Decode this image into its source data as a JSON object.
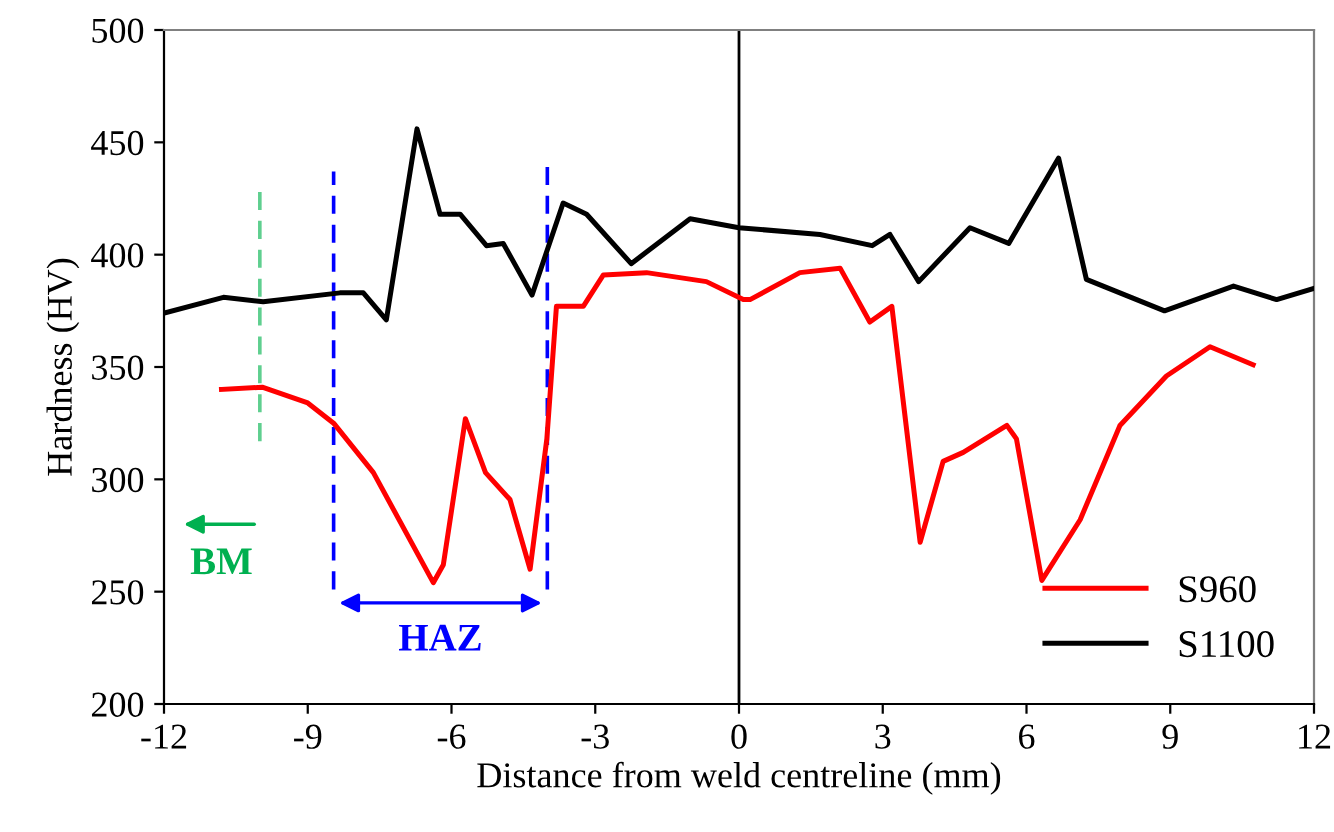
{
  "chart_data": {
    "type": "line",
    "xlabel": "Distance from weld centreline (mm)",
    "ylabel": "Hardness (HV)",
    "xlim": [
      -12,
      12
    ],
    "ylim": [
      200,
      500
    ],
    "xticks": [
      -12,
      -9,
      -6,
      -3,
      0,
      3,
      6,
      9,
      12
    ],
    "yticks": [
      200,
      250,
      300,
      350,
      400,
      450,
      500
    ],
    "grid": false,
    "legend": "bottom right",
    "marker": "none",
    "line_style": "solid",
    "series": [
      {
        "name": "S960",
        "color": "#ff0000",
        "x": [
          -10.8,
          -9.95,
          -9.0,
          -8.46,
          -7.63,
          -6.38,
          -6.17,
          -5.71,
          -5.29,
          -4.78,
          -4.36,
          -4.01,
          -3.81,
          -3.25,
          -2.83,
          -1.93,
          -0.68,
          0.09,
          0.23,
          1.27,
          2.11,
          2.73,
          3.19,
          3.78,
          4.26,
          4.68,
          5.59,
          5.79,
          6.32,
          7.12,
          7.95,
          8.92,
          9.83,
          10.73
        ],
        "values": [
          340,
          341,
          334,
          325,
          303,
          254,
          262,
          327,
          303,
          291,
          260,
          318,
          377,
          377,
          391,
          392,
          388,
          380,
          380,
          392,
          394,
          370,
          377,
          272,
          308,
          312,
          324,
          318,
          255,
          282,
          324,
          346,
          359,
          351
        ]
      },
      {
        "name": "S1100",
        "color": "#000000",
        "x": [
          -12,
          -10.76,
          -9.93,
          -8.33,
          -7.84,
          -7.36,
          -6.72,
          -6.24,
          -5.82,
          -5.27,
          -4.92,
          -4.32,
          -3.67,
          -3.18,
          -2.25,
          -1.02,
          0,
          1.69,
          2.78,
          3.15,
          3.75,
          4.82,
          5.63,
          6.67,
          7.25,
          8.88,
          10.32,
          11.22,
          12
        ],
        "values": [
          374,
          381,
          379,
          383,
          383,
          371,
          456,
          418,
          418,
          404,
          405,
          382,
          423,
          418,
          396,
          416,
          412,
          409,
          404,
          409,
          388,
          412,
          405,
          443,
          389,
          375,
          386,
          380,
          385
        ]
      }
    ],
    "ref_lines": [
      {
        "axis": "x",
        "value": 0,
        "color": "#000000",
        "line_style": "solid"
      },
      {
        "axis": "x",
        "value": -10,
        "color": "#5fcf8f",
        "line_style": "dashed"
      },
      {
        "axis": "x",
        "value": -8.46,
        "color": "#0000ff",
        "line_style": "dashed"
      },
      {
        "axis": "x",
        "value": -4.0,
        "color": "#0000ff",
        "line_style": "dashed"
      }
    ],
    "annotations": [
      "BM",
      "HAZ"
    ]
  }
}
